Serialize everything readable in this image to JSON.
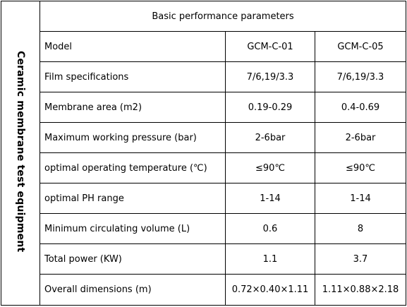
{
  "side_label": "Ceramic membrane test equipment",
  "header": "Basic performance parameters",
  "rows": [
    {
      "label": "Model",
      "v1": "GCM-C-01",
      "v2": "GCM-C-05"
    },
    {
      "label": "Film specifications",
      "v1": "7/6,19/3.3",
      "v2": "7/6,19/3.3"
    },
    {
      "label": "Membrane area (m2)",
      "v1": "0.19-0.29",
      "v2": "0.4-0.69"
    },
    {
      "label": "Maximum working pressure (bar)",
      "v1": "2-6bar",
      "v2": "2-6bar"
    },
    {
      "label": "optimal operating temperature (℃)",
      "v1": "≤90℃",
      "v2": "≤90℃"
    },
    {
      "label": "optimal PH range",
      "v1": "1-14",
      "v2": "1-14"
    },
    {
      "label": "Minimum circulating volume (L)",
      "v1": "0.6",
      "v2": "8"
    },
    {
      "label": "Total power (KW)",
      "v1": "1.1",
      "v2": "3.7"
    },
    {
      "label": "Overall dimensions (m)",
      "v1": "0.72×0.40×1.11",
      "v2": "1.11×0.88×2.18"
    }
  ]
}
